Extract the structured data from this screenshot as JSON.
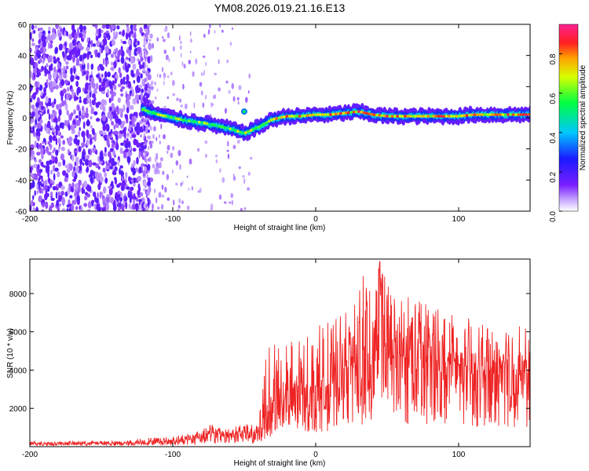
{
  "chart_data": [
    {
      "type": "heatmap",
      "title": "YM08.2026.019.21.16.E13",
      "xlabel": "Height of straight line (km)",
      "ylabel": "Frequency (Hz)",
      "xlim": [
        -200,
        150
      ],
      "ylim": [
        -60,
        60
      ],
      "xticks": [
        -200,
        -100,
        0,
        100
      ],
      "yticks": [
        -60,
        -40,
        -20,
        0,
        20,
        40,
        60
      ],
      "colorbar": {
        "label": "Normalized spectral amplitude",
        "range": [
          0,
          0.95
        ],
        "ticks": [
          0.0,
          0.2,
          0.4,
          0.6,
          0.8
        ],
        "colormap": "rainbow (violet to red)"
      },
      "ridge_x": [
        -120,
        -110,
        -100,
        -90,
        -80,
        -70,
        -60,
        -50,
        -40,
        -30,
        -20,
        -10,
        0,
        10,
        20,
        30,
        40,
        50,
        60,
        70,
        80,
        90,
        100,
        110,
        120,
        130,
        140,
        150
      ],
      "ridge_freq": [
        5,
        2,
        0,
        -2,
        -3,
        -5,
        -7,
        -10,
        -6,
        -1,
        1,
        1,
        2,
        2,
        3,
        4,
        2,
        1,
        1,
        1,
        1,
        1,
        1,
        2,
        2,
        2,
        2,
        2
      ],
      "noise_region_x": [
        -200,
        -120
      ]
    },
    {
      "type": "line",
      "xlabel": "Height of straight line (km)",
      "ylabel": "SNR (10 * v/v)",
      "xlim": [
        -200,
        150
      ],
      "ylim": [
        0,
        9800
      ],
      "xticks": [
        -200,
        -100,
        0,
        100
      ],
      "yticks": [
        2000,
        4000,
        6000,
        8000
      ],
      "series": [
        {
          "name": "SNR",
          "color": "#ee2222",
          "x": [
            -200,
            -180,
            -160,
            -140,
            -120,
            -110,
            -100,
            -90,
            -80,
            -75,
            -70,
            -60,
            -50,
            -40,
            -35,
            -30,
            -25,
            -20,
            -10,
            0,
            10,
            20,
            30,
            40,
            45,
            50,
            60,
            70,
            80,
            90,
            100,
            110,
            120,
            130,
            140,
            150
          ],
          "values": [
            180,
            170,
            200,
            180,
            230,
            260,
            320,
            420,
            500,
            850,
            600,
            650,
            700,
            600,
            1600,
            2400,
            2000,
            2500,
            2700,
            3000,
            3300,
            4200,
            4300,
            5300,
            9600,
            4500,
            4700,
            4500,
            4600,
            4400,
            4300,
            4000,
            4000,
            4100,
            4000,
            3800
          ],
          "envelope_max": [
            300,
            280,
            320,
            300,
            450,
            500,
            550,
            700,
            900,
            1300,
            1000,
            1000,
            1200,
            1100,
            5200,
            5500,
            6000,
            5800,
            5500,
            6200,
            7000,
            7000,
            9200,
            8500,
            9800,
            8500,
            8000,
            8200,
            7600,
            7800,
            6800,
            6700,
            6200,
            6500,
            6500,
            6200
          ]
        }
      ]
    }
  ]
}
